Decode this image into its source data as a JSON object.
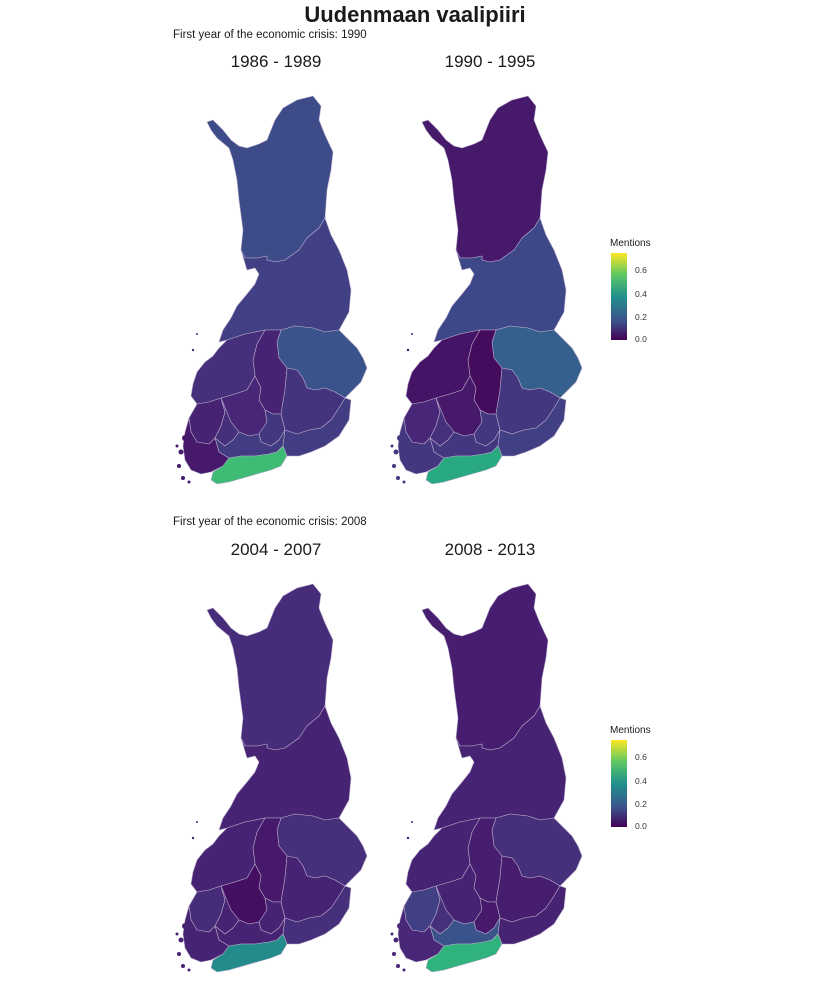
{
  "title": "Uudenmaan vaalipiiri",
  "groups": [
    {
      "subtitle": "First year of the economic crisis: 1990",
      "panels": [
        {
          "label": "1986 - 1989",
          "lapland": 0.17,
          "oulu": 0.14,
          "north_savo": 0.07,
          "north_karelia": 0.19,
          "central_finland": 0.08,
          "vaasa": 0.1,
          "oulu_south": 0.12,
          "satakunta": 0.07,
          "pirkanmaa": 0.1,
          "hame": 0.13,
          "kymi": 0.13,
          "mikkeli": 0.11,
          "varsinais_suomi": 0.05,
          "uusimaa": 0.5
        },
        {
          "label": "1990 - 1995",
          "lapland": 0.05,
          "oulu": 0.16,
          "north_savo": 0.02,
          "north_karelia": 0.22,
          "central_finland": 0.05,
          "vaasa": 0.04,
          "oulu_south": 0.12,
          "satakunta": 0.08,
          "pirkanmaa": 0.1,
          "hame": 0.12,
          "kymi": 0.14,
          "mikkeli": 0.12,
          "varsinais_suomi": 0.12,
          "uusimaa": 0.44
        }
      ],
      "legend": {
        "title": "Mentions",
        "ticks": [
          "0.6",
          "0.4",
          "0.2",
          "0.0"
        ]
      }
    },
    {
      "subtitle": "First year of the economic crisis: 2008",
      "panels": [
        {
          "label": "2004 - 2007",
          "lapland": 0.09,
          "oulu": 0.07,
          "north_savo": 0.05,
          "north_karelia": 0.1,
          "central_finland": 0.03,
          "vaasa": 0.07,
          "oulu_south": 0.07,
          "satakunta": 0.09,
          "pirkanmaa": 0.07,
          "hame": 0.07,
          "kymi": 0.1,
          "mikkeli": 0.07,
          "varsinais_suomi": 0.07,
          "uusimaa": 0.35
        },
        {
          "label": "2008 - 2013",
          "lapland": 0.06,
          "oulu": 0.07,
          "north_savo": 0.06,
          "north_karelia": 0.1,
          "central_finland": 0.07,
          "vaasa": 0.07,
          "oulu_south": 0.05,
          "satakunta": 0.14,
          "pirkanmaa": 0.1,
          "hame": 0.19,
          "kymi": 0.07,
          "mikkeli": 0.06,
          "varsinais_suomi": 0.08,
          "uusimaa": 0.47
        }
      ],
      "legend": {
        "title": "Mentions",
        "ticks": [
          "0.6",
          "0.4",
          "0.2",
          "0.0"
        ]
      }
    }
  ],
  "scale": {
    "min": 0.0,
    "max": 0.73,
    "palette": [
      "#440154",
      "#482878",
      "#3e4989",
      "#31688e",
      "#26828e",
      "#1f9e89",
      "#35b779",
      "#6ece58",
      "#b5de2b",
      "#fde725"
    ]
  }
}
